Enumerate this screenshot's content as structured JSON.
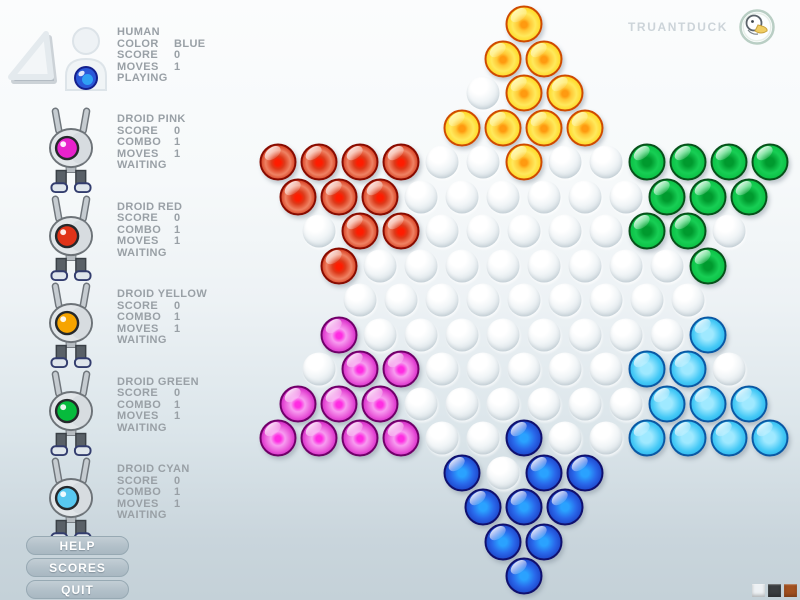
{
  "brand": {
    "name": "TRUANTDUCK"
  },
  "human": {
    "name": "HUMAN",
    "stats": [
      [
        "COLOR",
        "BLUE"
      ],
      [
        "SCORE",
        "0"
      ],
      [
        "MOVES",
        "1"
      ]
    ],
    "status": "PLAYING",
    "marble_color": "#2b58d8"
  },
  "droids": [
    {
      "name": "DROID PINK",
      "stats": [
        [
          "SCORE",
          "0"
        ],
        [
          "COMBO",
          "1"
        ],
        [
          "MOVES",
          "1"
        ]
      ],
      "status": "WAITING",
      "eye_color": "#e822cc"
    },
    {
      "name": "DROID RED",
      "stats": [
        [
          "SCORE",
          "0"
        ],
        [
          "COMBO",
          "1"
        ],
        [
          "MOVES",
          "1"
        ]
      ],
      "status": "WAITING",
      "eye_color": "#e03318"
    },
    {
      "name": "DROID YELLOW",
      "stats": [
        [
          "SCORE",
          "0"
        ],
        [
          "COMBO",
          "1"
        ],
        [
          "MOVES",
          "1"
        ]
      ],
      "status": "WAITING",
      "eye_color": "#f6a400"
    },
    {
      "name": "DROID GREEN",
      "stats": [
        [
          "SCORE",
          "0"
        ],
        [
          "COMBO",
          "1"
        ],
        [
          "MOVES",
          "1"
        ]
      ],
      "status": "WAITING",
      "eye_color": "#06bb3c"
    },
    {
      "name": "DROID CYAN",
      "stats": [
        [
          "SCORE",
          "0"
        ],
        [
          "COMBO",
          "1"
        ],
        [
          "MOVES",
          "1"
        ]
      ],
      "status": "WAITING",
      "eye_color": "#58c8f0"
    }
  ],
  "menu": [
    {
      "label": "HELP"
    },
    {
      "label": "SCORES"
    },
    {
      "label": "QUIT"
    }
  ],
  "board": {
    "rows": [
      "Y",
      "YY",
      ".YY",
      "YYYY",
      "RRRR..Y..GGGG",
      "RRR......GGG",
      ".RR.....GG.",
      "R........G",
      ".........",
      "M........C",
      ".MM.....CC.",
      "MMM......CCC",
      "MMMM..B..CCCC",
      "B.BB",
      "BBB",
      "BB",
      "B"
    ],
    "legend": {
      "Y": "yellow",
      "R": "red",
      "G": "green",
      "M": "pink",
      "C": "cyan",
      "B": "blue",
      ".": "empty"
    },
    "marble_colors": {
      "Y": "#ffcc00",
      "R": "#dd2200",
      "G": "#11bb44",
      "M": "#dd22cc",
      "C": "#33bbee",
      "B": "#2244dd"
    }
  },
  "theme_swatches": [
    {
      "name": "light",
      "color": "#edf1f4"
    },
    {
      "name": "dark",
      "color": "#3a3d40"
    },
    {
      "name": "rust",
      "color": "#a1501f"
    }
  ]
}
